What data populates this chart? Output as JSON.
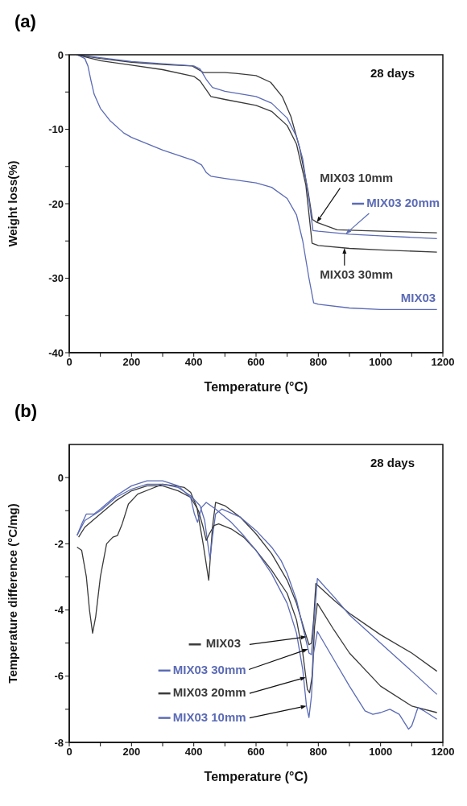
{
  "chart_data": [
    {
      "type": "line",
      "title": "(a)",
      "xlabel": "Temperature (°C)",
      "ylabel": "Weight loss(%)",
      "annotations": [
        "28 days"
      ],
      "xlim": [
        0,
        1200
      ],
      "ylim": [
        -40,
        0
      ],
      "xticks": [
        0,
        {
          "value": 100,
          "label": null
        },
        200,
        {
          "value": 300,
          "label": null
        },
        400,
        {
          "value": 500,
          "label": null
        },
        600,
        {
          "value": 700,
          "label": null
        },
        800,
        {
          "value": 900,
          "label": null
        },
        1000,
        {
          "value": 1100,
          "label": null
        },
        1200
      ],
      "yticks": [
        -40,
        {
          "value": -35,
          "label": null
        },
        -30,
        {
          "value": -25,
          "label": null
        },
        -20,
        {
          "value": -15,
          "label": null
        },
        -10,
        {
          "value": -5,
          "label": null
        },
        0
      ],
      "series": [
        {
          "name": "MIX03 10mm",
          "color": "#3a3a3a",
          "x": [
            25,
            100,
            200,
            300,
            395,
            432,
            500,
            535,
            600,
            647,
            684,
            712,
            740,
            767,
            781,
            795,
            860,
            1000,
            1181
          ],
          "values": [
            0,
            -0.5,
            -1.0,
            -1.3,
            -1.5,
            -2.4,
            -2.4,
            -2.5,
            -2.8,
            -3.7,
            -5.6,
            -8.3,
            -12.5,
            -18.3,
            -22.1,
            -22.5,
            -23.5,
            -23.7,
            -23.9
          ]
        },
        {
          "name": "MIX03 20mm",
          "color": "#5b6bb5",
          "x": [
            25,
            100,
            200,
            300,
            400,
            420,
            440,
            460,
            500,
            600,
            650,
            700,
            730,
            750,
            770,
            783,
            800,
            900,
            1000,
            1181
          ],
          "values": [
            0,
            -0.4,
            -0.9,
            -1.2,
            -1.5,
            -1.9,
            -3.3,
            -4.4,
            -4.9,
            -5.6,
            -6.5,
            -8.5,
            -11,
            -14,
            -19.5,
            -23.6,
            -23.7,
            -24.1,
            -24.3,
            -24.7
          ]
        },
        {
          "name": "MIX03 30mm",
          "color": "#3a3a3a",
          "x": [
            25,
            100,
            200,
            300,
            400,
            420,
            455,
            500,
            600,
            650,
            700,
            730,
            760,
            780,
            800,
            900,
            1000,
            1181
          ],
          "values": [
            0,
            -0.8,
            -1.4,
            -2.0,
            -2.9,
            -3.5,
            -5.6,
            -6.0,
            -6.8,
            -7.6,
            -9.5,
            -12,
            -17.5,
            -25.3,
            -25.6,
            -26.0,
            -26.2,
            -26.5
          ]
        },
        {
          "name": "MIX03",
          "color": "#5b6bb5",
          "x": [
            25,
            50,
            60,
            70,
            80,
            100,
            130,
            175,
            200,
            300,
            400,
            425,
            440,
            455,
            500,
            600,
            650,
            700,
            730,
            750,
            770,
            785,
            800,
            900,
            1000,
            1181
          ],
          "values": [
            0,
            -0.5,
            -1.5,
            -3.5,
            -5.3,
            -7.2,
            -8.8,
            -10.5,
            -11.1,
            -12.8,
            -14.2,
            -14.8,
            -15.8,
            -16.3,
            -16.6,
            -17.2,
            -17.8,
            -19.3,
            -21.5,
            -25,
            -30,
            -33.3,
            -33.5,
            -34.0,
            -34.2,
            -34.2
          ]
        }
      ]
    },
    {
      "type": "line",
      "title": "(b)",
      "legend": "bottom",
      "xlabel": "Temperature (°C)",
      "ylabel": "Temperature difference (°C/mg)",
      "annotations": [
        "28 days"
      ],
      "xlim": [
        0,
        1200
      ],
      "ylim": [
        -8,
        1
      ],
      "xticks": [
        0,
        {
          "value": 100,
          "label": null
        },
        200,
        {
          "value": 300,
          "label": null
        },
        400,
        {
          "value": 500,
          "label": null
        },
        600,
        {
          "value": 700,
          "label": null
        },
        800,
        {
          "value": 900,
          "label": null
        },
        1000,
        {
          "value": 1100,
          "label": null
        },
        1200
      ],
      "yticks": [
        -8,
        {
          "value": -7,
          "label": null
        },
        -6,
        {
          "value": -5,
          "label": null
        },
        -4,
        {
          "value": -3,
          "label": null
        },
        -2,
        {
          "value": -1,
          "label": null
        },
        0
      ],
      "series": [
        {
          "name": "MIX03",
          "color": "#3a3a3a",
          "x": [
            25,
            40,
            55,
            65,
            75,
            85,
            100,
            120,
            140,
            155,
            170,
            190,
            220,
            260,
            300,
            340,
            370,
            390,
            410,
            430,
            448,
            460,
            470,
            500,
            550,
            600,
            650,
            700,
            730,
            755,
            770,
            778,
            785,
            792,
            850,
            900,
            1000,
            1100,
            1181
          ],
          "values": [
            -2.1,
            -2.2,
            -3.0,
            -4.0,
            -4.7,
            -4.2,
            -3.0,
            -2.0,
            -1.8,
            -1.75,
            -1.4,
            -0.8,
            -0.5,
            -0.35,
            -0.2,
            -0.25,
            -0.3,
            -0.45,
            -0.9,
            -2.0,
            -3.1,
            -1.5,
            -0.75,
            -0.85,
            -1.2,
            -1.7,
            -2.3,
            -3.1,
            -3.8,
            -4.6,
            -5.05,
            -5.0,
            -4.3,
            -3.2,
            -3.7,
            -4.1,
            -4.75,
            -5.3,
            -5.85
          ]
        },
        {
          "name": "MIX03 30mm",
          "color": "#5b6bb5",
          "x": [
            25,
            50,
            100,
            150,
            200,
            250,
            300,
            350,
            390,
            420,
            435,
            445,
            452,
            460,
            470,
            490,
            550,
            600,
            650,
            680,
            700,
            730,
            755,
            770,
            778,
            785,
            797,
            850,
            900,
            1000,
            1100,
            1181
          ],
          "values": [
            -1.75,
            -1.3,
            -1.0,
            -0.6,
            -0.35,
            -0.2,
            -0.2,
            -0.3,
            -0.55,
            -0.85,
            -1.3,
            -2.0,
            -2.45,
            -1.8,
            -1.1,
            -0.95,
            -1.2,
            -1.6,
            -2.1,
            -2.5,
            -2.9,
            -3.7,
            -4.7,
            -5.3,
            -5.35,
            -4.5,
            -3.05,
            -3.6,
            -4.15,
            -5.0,
            -5.85,
            -6.55
          ]
        },
        {
          "name": "MIX03 20mm",
          "color": "#3a3a3a",
          "x": [
            30,
            50,
            100,
            150,
            200,
            250,
            300,
            350,
            390,
            415,
            430,
            440,
            450,
            465,
            480,
            520,
            560,
            600,
            650,
            700,
            730,
            750,
            765,
            772,
            780,
            788,
            797,
            850,
            900,
            1000,
            1100,
            1181
          ],
          "values": [
            -1.8,
            -1.5,
            -1.1,
            -0.7,
            -0.4,
            -0.25,
            -0.25,
            -0.4,
            -0.6,
            -1.0,
            -1.5,
            -1.9,
            -1.7,
            -1.45,
            -1.4,
            -1.55,
            -1.8,
            -2.2,
            -2.8,
            -3.5,
            -4.3,
            -5.3,
            -6.4,
            -6.5,
            -6.0,
            -4.5,
            -3.8,
            -4.6,
            -5.3,
            -6.3,
            -6.9,
            -7.1
          ]
        },
        {
          "name": "MIX03 10mm",
          "color": "#5b6bb5",
          "x": [
            25,
            40,
            55,
            80,
            100,
            150,
            200,
            250,
            300,
            350,
            390,
            402,
            412,
            425,
            440,
            470,
            520,
            560,
            600,
            650,
            700,
            730,
            750,
            762,
            770,
            778,
            785,
            797,
            850,
            900,
            950,
            975,
            1000,
            1030,
            1060,
            1090,
            1100,
            1120,
            1140,
            1181
          ],
          "values": [
            -1.75,
            -1.4,
            -1.1,
            -1.1,
            -0.95,
            -0.55,
            -0.25,
            -0.1,
            -0.1,
            -0.25,
            -0.6,
            -1.1,
            -1.35,
            -0.9,
            -0.75,
            -0.95,
            -1.35,
            -1.75,
            -2.2,
            -2.9,
            -3.8,
            -4.7,
            -5.8,
            -6.9,
            -7.25,
            -6.6,
            -5.3,
            -4.65,
            -5.5,
            -6.3,
            -7.05,
            -7.15,
            -7.1,
            -7.0,
            -7.15,
            -7.6,
            -7.5,
            -6.95,
            -7.05,
            -7.3
          ]
        }
      ]
    }
  ]
}
